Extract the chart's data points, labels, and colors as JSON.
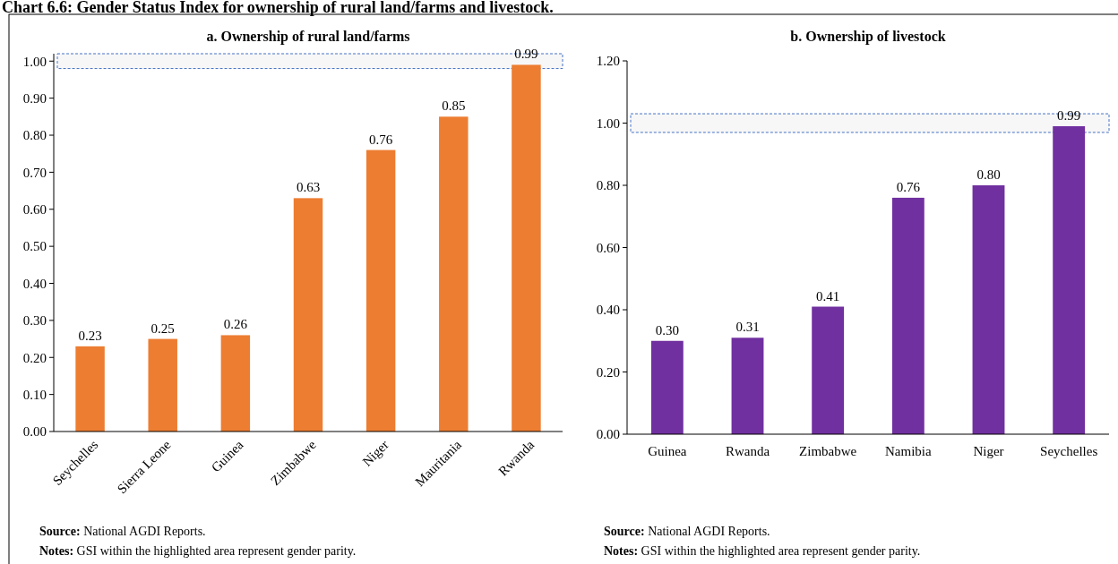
{
  "chart_data": [
    {
      "type": "bar",
      "title": "a. Ownership of rural land/farms",
      "categories": [
        "Seychelles",
        "Sierra Leone",
        "Guinea",
        "Zimbabwe",
        "Niger",
        "Mauritania",
        "Rwanda"
      ],
      "values": [
        0.23,
        0.25,
        0.26,
        0.63,
        0.76,
        0.85,
        0.99
      ],
      "value_labels": [
        "0.23",
        "0.25",
        "0.26",
        "0.63",
        "0.76",
        "0.85",
        "0.99"
      ],
      "color": "#ed7d31",
      "ylim": [
        0,
        1.02
      ],
      "yticks": [
        {
          "value": 0,
          "label": "0.00"
        },
        {
          "value": 0.1,
          "label": "0.10"
        },
        {
          "value": 0.2,
          "label": "0.20"
        },
        {
          "value": 0.3,
          "label": "0.30"
        },
        {
          "value": 0.4,
          "label": "0.40"
        },
        {
          "value": 0.5,
          "label": "0.50"
        },
        {
          "value": 0.6,
          "label": "0.60"
        },
        {
          "value": 0.7,
          "label": "0.70"
        },
        {
          "value": 0.8,
          "label": "0.80"
        },
        {
          "value": 0.9,
          "label": "0.90"
        },
        {
          "value": 1,
          "label": "1.00"
        }
      ],
      "grid": false,
      "bands": [
        {
          "axis": "y",
          "from": 0.98,
          "to": 1.02,
          "color": "#4472c4"
        }
      ],
      "annotations": [
        "Chart 6.6: Gender Status Index for ownership of rural land/farms and livestock.",
        "Source: National  AGDI Reports.",
        "Notes: GSI within  the highlighted  area represent gender parity."
      ]
    },
    {
      "type": "bar",
      "title": "b. Ownership of livestock",
      "categories": [
        "Guinea",
        "Rwanda",
        "Zimbabwe",
        "Namibia",
        "Niger",
        "Seychelles"
      ],
      "values": [
        0.3,
        0.31,
        0.41,
        0.76,
        0.8,
        0.99
      ],
      "value_labels": [
        "0.30",
        "0.31",
        "0.41",
        "0.76",
        "0.80",
        "0.99"
      ],
      "color": "#7030a0",
      "ylim": [
        0,
        1.2
      ],
      "yticks": [
        {
          "value": 0,
          "label": "0.00"
        },
        {
          "value": 0.2,
          "label": "0.20"
        },
        {
          "value": 0.4,
          "label": "0.40"
        },
        {
          "value": 0.6,
          "label": "0.60"
        },
        {
          "value": 0.8,
          "label": "0.80"
        },
        {
          "value": 1,
          "label": "1.00"
        },
        {
          "value": 1.2,
          "label": "1.20"
        }
      ],
      "grid": false,
      "bands": [
        {
          "axis": "y",
          "from": 0.97,
          "to": 1.03,
          "color": "#4472c4"
        }
      ],
      "annotations": [
        "Source: National  AGDI Reports.",
        "Notes: GSI within  the highlighted  area represent gender parity."
      ]
    }
  ]
}
